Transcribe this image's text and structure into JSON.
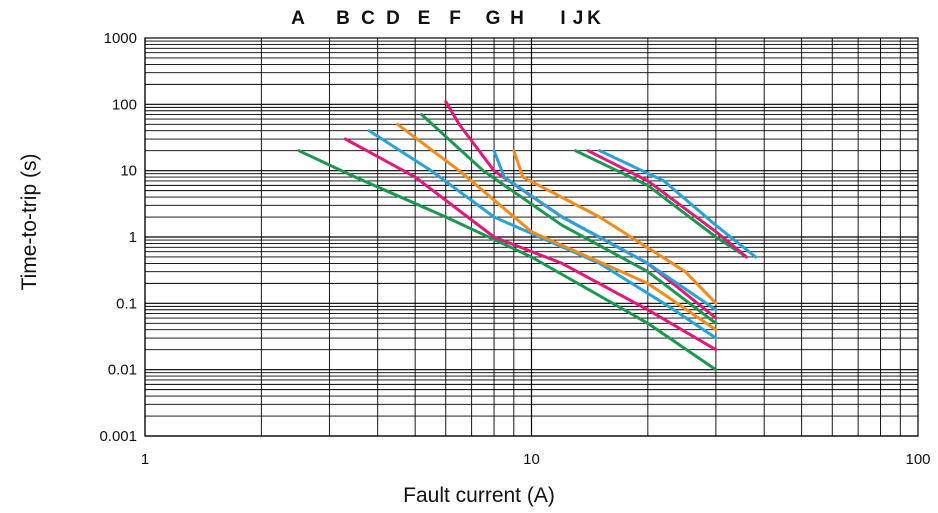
{
  "chart_data": {
    "type": "line",
    "title": "",
    "xlabel": "Fault current (A)",
    "ylabel": "Time-to-trip (s)",
    "x_scale": "log",
    "y_scale": "log",
    "xlim": [
      1,
      100
    ],
    "ylim": [
      0.001,
      1000
    ],
    "x_tick_labels": [
      "1",
      "10",
      "100"
    ],
    "y_tick_labels": [
      "0.001",
      "0.01",
      "0.1",
      "1",
      "10",
      "100",
      "1000"
    ],
    "grid": true,
    "curve_letters": [
      "A",
      "B",
      "C",
      "D",
      "E",
      "F",
      "G",
      "H",
      "I",
      "J",
      "K"
    ],
    "series": [
      {
        "color": "#1a9850",
        "points": [
          [
            2.5,
            20
          ],
          [
            3.5,
            8
          ],
          [
            6,
            2
          ],
          [
            10,
            0.5
          ],
          [
            20,
            0.05
          ],
          [
            30,
            0.01
          ]
        ]
      },
      {
        "color": "#e0197b",
        "points": [
          [
            3.3,
            30
          ],
          [
            5,
            8
          ],
          [
            8,
            1
          ],
          [
            12,
            0.4
          ],
          [
            20,
            0.08
          ],
          [
            30,
            0.02
          ]
        ]
      },
      {
        "color": "#29a3d6",
        "points": [
          [
            3.8,
            40
          ],
          [
            5.5,
            10
          ],
          [
            8,
            2
          ],
          [
            15,
            0.4
          ],
          [
            22,
            0.1
          ],
          [
            30,
            0.03
          ]
        ]
      },
      {
        "color": "#f28c1c",
        "points": [
          [
            4.5,
            50
          ],
          [
            6.5,
            10
          ],
          [
            10,
            1.2
          ],
          [
            20,
            0.2
          ],
          [
            30,
            0.04
          ]
        ]
      },
      {
        "color": "#1a9850",
        "points": [
          [
            5.2,
            70
          ],
          [
            7.5,
            10
          ],
          [
            12,
            1.5
          ],
          [
            20,
            0.3
          ],
          [
            30,
            0.05
          ]
        ]
      },
      {
        "color": "#e0197b",
        "points": [
          [
            6,
            110
          ],
          [
            6.5,
            50
          ],
          [
            8,
            10
          ],
          [
            12,
            2
          ],
          [
            20,
            0.4
          ],
          [
            30,
            0.06
          ]
        ]
      },
      {
        "color": "#29a3d6",
        "points": [
          [
            8,
            20
          ],
          [
            8.5,
            8
          ],
          [
            12,
            2
          ],
          [
            20,
            0.4
          ],
          [
            30,
            0.08
          ]
        ]
      },
      {
        "color": "#f28c1c",
        "points": [
          [
            9,
            20
          ],
          [
            9.5,
            8
          ],
          [
            15,
            2
          ],
          [
            25,
            0.3
          ],
          [
            30,
            0.1
          ]
        ]
      },
      {
        "color": "#1a9850",
        "points": [
          [
            13,
            20
          ],
          [
            20,
            6
          ],
          [
            30,
            1
          ],
          [
            36,
            0.5
          ]
        ]
      },
      {
        "color": "#e0197b",
        "points": [
          [
            14,
            20
          ],
          [
            20,
            7
          ],
          [
            30,
            1.2
          ],
          [
            36,
            0.5
          ]
        ]
      },
      {
        "color": "#29a3d6",
        "points": [
          [
            15,
            20
          ],
          [
            22,
            7
          ],
          [
            30,
            1.5
          ],
          [
            38,
            0.5
          ]
        ]
      }
    ]
  }
}
